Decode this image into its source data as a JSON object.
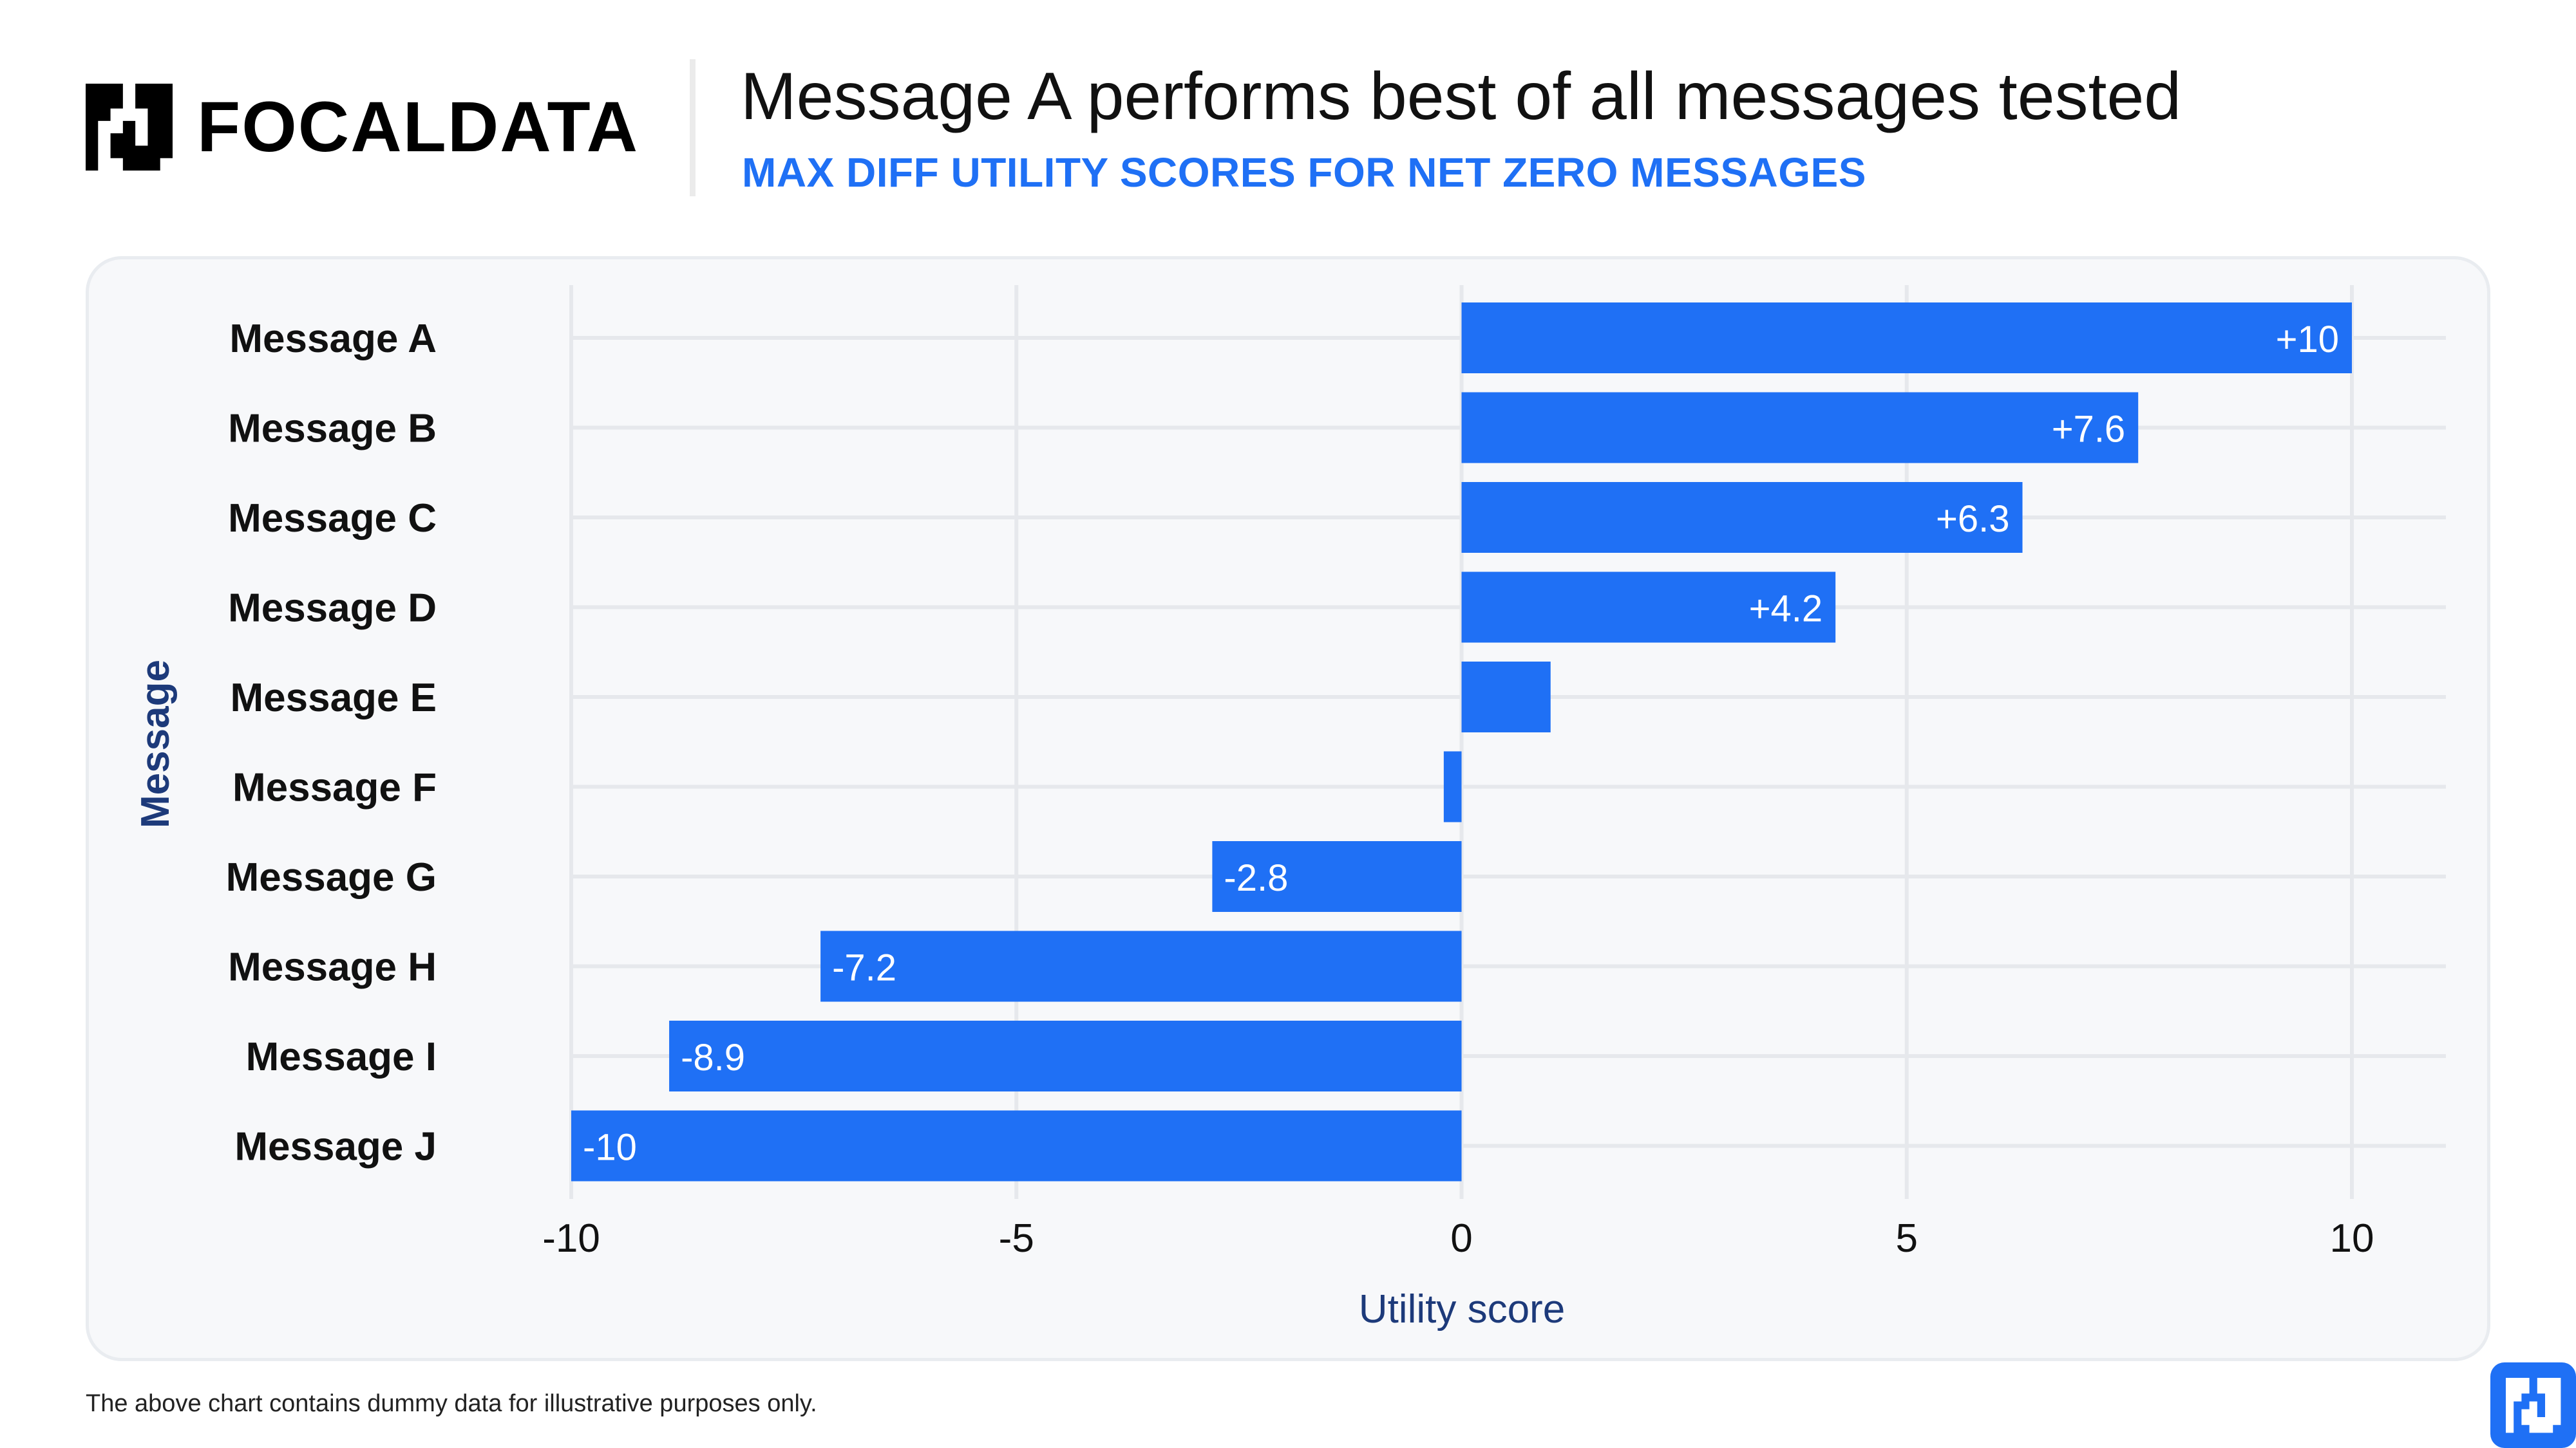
{
  "brand": {
    "name": "FOCALDATA",
    "accent_color": "#1f70f5",
    "logo_icon": "focaldata-logo-icon"
  },
  "header": {
    "title": "Message A performs best of all messages tested",
    "subtitle": "MAX DIFF UTILITY SCORES FOR NET ZERO MESSAGES"
  },
  "footer": {
    "note": "The above chart contains dummy data for illustrative purposes only."
  },
  "chart_data": {
    "type": "bar",
    "orientation": "horizontal",
    "title": "Message A performs best of all messages tested",
    "subtitle": "MAX DIFF UTILITY SCORES FOR NET ZERO MESSAGES",
    "categories": [
      "Message A",
      "Message B",
      "Message C",
      "Message D",
      "Message E",
      "Message F",
      "Message G",
      "Message H",
      "Message I",
      "Message J"
    ],
    "values": [
      10,
      7.6,
      6.3,
      4.2,
      1,
      -0.2,
      -2.8,
      -7.2,
      -8.9,
      -10
    ],
    "data_labels": [
      "+10",
      "+7.6",
      "+6.3",
      "+4.2",
      "",
      "",
      "-2.8",
      "-7.2",
      "-8.9",
      "-10"
    ],
    "xlabel": "Utility score",
    "ylabel": "Message",
    "xlim": [
      -10,
      10
    ],
    "xticks": [
      -10,
      -5,
      0,
      5,
      10
    ],
    "xtick_labels": [
      "-10",
      "-5",
      "0",
      "5",
      "10"
    ],
    "bar_color": "#1f70f5",
    "grid": true
  }
}
